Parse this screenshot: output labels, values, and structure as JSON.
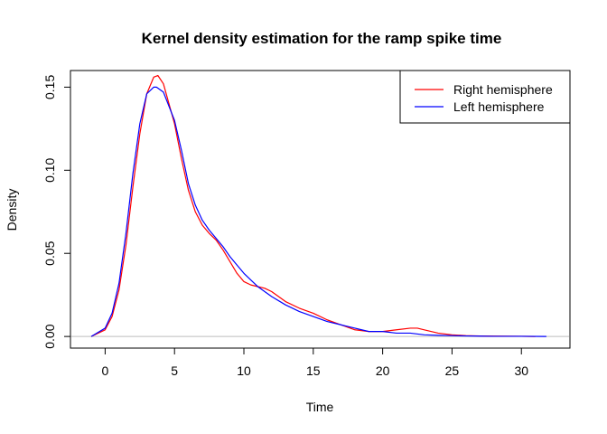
{
  "chart_data": {
    "type": "line",
    "title": "Kernel density estimation for the ramp spike time",
    "xlabel": "Time",
    "ylabel": "Density",
    "xlim": [
      -2.5,
      33.5
    ],
    "ylim": [
      -0.007,
      0.16
    ],
    "xticks": [
      0,
      5,
      10,
      15,
      20,
      25,
      30
    ],
    "yticks": [
      0.0,
      0.05,
      0.1,
      0.15
    ],
    "ytick_labels": [
      "0.00",
      "0.05",
      "0.10",
      "0.15"
    ],
    "baseline": 0,
    "baseline_color": "#bebebe",
    "legend_position": "top-right",
    "series": [
      {
        "name": "Right hemisphere",
        "color": "#ff0000",
        "x": [
          -1.0,
          0.0,
          0.5,
          1.0,
          1.5,
          2.0,
          2.5,
          3.0,
          3.5,
          3.8,
          4.2,
          5.0,
          5.5,
          6.0,
          6.5,
          7.0,
          7.5,
          8.0,
          8.5,
          9.0,
          9.5,
          10.0,
          10.5,
          11.0,
          11.5,
          12.0,
          13.0,
          14.0,
          15.0,
          16.0,
          17.0,
          18.0,
          19.0,
          20.0,
          21.0,
          22.0,
          22.5,
          23.0,
          24.0,
          25.0,
          26.0,
          27.0,
          28.0,
          30.0,
          31.0
        ],
        "y": [
          0.0,
          0.004,
          0.012,
          0.028,
          0.055,
          0.09,
          0.122,
          0.146,
          0.156,
          0.157,
          0.152,
          0.128,
          0.107,
          0.088,
          0.075,
          0.067,
          0.062,
          0.058,
          0.052,
          0.045,
          0.038,
          0.033,
          0.031,
          0.03,
          0.029,
          0.027,
          0.021,
          0.017,
          0.014,
          0.01,
          0.007,
          0.004,
          0.003,
          0.003,
          0.004,
          0.005,
          0.005,
          0.004,
          0.002,
          0.001,
          0.0005,
          0.0003,
          0.0002,
          0.0001,
          0.0
        ]
      },
      {
        "name": "Left hemisphere",
        "color": "#0000ff",
        "x": [
          -1.0,
          0.0,
          0.5,
          1.0,
          1.5,
          2.0,
          2.5,
          3.0,
          3.5,
          3.7,
          4.2,
          5.0,
          5.5,
          6.0,
          6.5,
          7.0,
          7.5,
          8.0,
          8.5,
          9.0,
          9.5,
          10.0,
          10.5,
          11.0,
          11.5,
          12.0,
          13.0,
          14.0,
          15.0,
          16.0,
          17.0,
          18.0,
          19.0,
          20.0,
          21.0,
          22.0,
          23.0,
          24.0,
          25.0,
          26.0,
          27.0,
          28.0,
          30.0,
          31.8
        ],
        "y": [
          0.0,
          0.005,
          0.014,
          0.032,
          0.062,
          0.098,
          0.128,
          0.146,
          0.15,
          0.15,
          0.147,
          0.13,
          0.112,
          0.092,
          0.079,
          0.07,
          0.064,
          0.059,
          0.054,
          0.048,
          0.043,
          0.038,
          0.034,
          0.03,
          0.027,
          0.024,
          0.019,
          0.015,
          0.012,
          0.009,
          0.007,
          0.005,
          0.003,
          0.003,
          0.002,
          0.002,
          0.001,
          0.0007,
          0.0005,
          0.0003,
          0.0002,
          0.0001,
          0.0001,
          0.0
        ]
      }
    ]
  }
}
